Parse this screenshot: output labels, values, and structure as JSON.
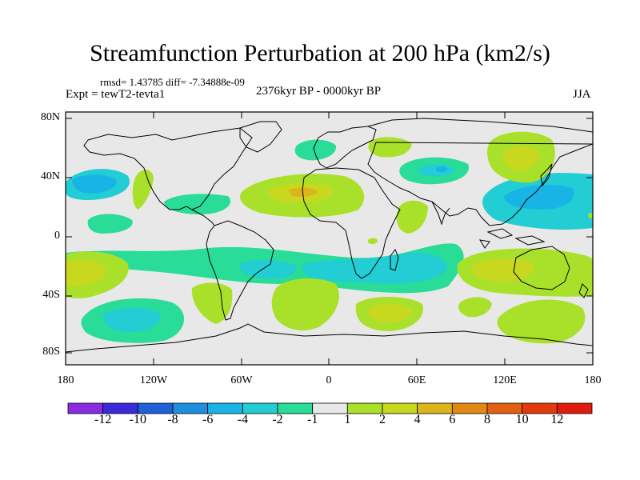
{
  "title": "Streamfunction Perturbation at 200 hPa (km2/s)",
  "stats": "rmsd= 1.43785 diff= -7.34888e-09",
  "experiment": "Expt = tewT2-tevta1",
  "period": "2376kyr BP - 0000kyr BP",
  "season": "JJA",
  "lat_labels": [
    "80N",
    "40N",
    "0",
    "40S",
    "80S"
  ],
  "lon_labels": [
    "180",
    "120W",
    "60W",
    "0",
    "60E",
    "120E",
    "180"
  ],
  "colorbar": {
    "labels": [
      "-12",
      "-10",
      "-8",
      "-6",
      "-4",
      "-2",
      "-1",
      "1",
      "2",
      "4",
      "6",
      "8",
      "10",
      "12"
    ],
    "colors": [
      "#8a2be2",
      "#3a2ad8",
      "#1f5fd8",
      "#1e8fdf",
      "#19b4e6",
      "#22cdd3",
      "#29dc98",
      "#e8e8e8",
      "#a9e02a",
      "#c8d81e",
      "#dcb51c",
      "#e28814",
      "#e2600f",
      "#e33a0d",
      "#e21b0f"
    ]
  },
  "palette": {
    "neutral": "#e8e8e8",
    "pos1": "#a9e02a",
    "pos2": "#c8d81e",
    "pos3": "#dcb51c",
    "neg1": "#29dc98",
    "neg2": "#22cdd3",
    "neg3": "#19b4e6"
  }
}
